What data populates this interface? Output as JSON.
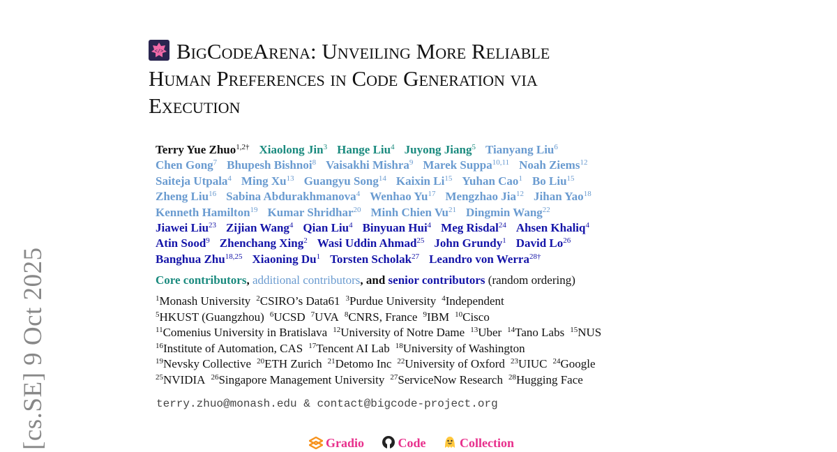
{
  "arxiv_stamp": "[cs.SE]  9 Oct 2025",
  "title": {
    "lines": [
      "BigCodeArena: Unveiling More Reliable",
      "Human Preferences in Code Generation via",
      "Execution"
    ],
    "logo_text": "</>"
  },
  "colors": {
    "core": "#1a8a7e",
    "additional": "#6a9bd0",
    "senior": "#1414a8",
    "link": "#e8308c"
  },
  "authors": [
    [
      {
        "name": "Terry Yue Zhuo",
        "sup": "1,2†",
        "type": "lead"
      },
      {
        "name": "Xiaolong Jin",
        "sup": "3",
        "type": "core"
      },
      {
        "name": "Hange Liu",
        "sup": "4",
        "type": "core"
      },
      {
        "name": "Juyong Jiang",
        "sup": "5",
        "type": "core"
      },
      {
        "name": "Tianyang Liu",
        "sup": "6",
        "type": "additional"
      }
    ],
    [
      {
        "name": "Chen Gong",
        "sup": "7",
        "type": "additional"
      },
      {
        "name": "Bhupesh Bishnoi",
        "sup": "8",
        "type": "additional"
      },
      {
        "name": "Vaisakhi Mishra",
        "sup": "9",
        "type": "additional"
      },
      {
        "name": "Marek Suppa",
        "sup": "10,11",
        "type": "additional"
      },
      {
        "name": "Noah Ziems",
        "sup": "12",
        "type": "additional"
      }
    ],
    [
      {
        "name": "Saiteja Utpala",
        "sup": "4",
        "type": "additional"
      },
      {
        "name": "Ming Xu",
        "sup": "13",
        "type": "additional"
      },
      {
        "name": "Guangyu Song",
        "sup": "14",
        "type": "additional"
      },
      {
        "name": "Kaixin Li",
        "sup": "15",
        "type": "additional"
      },
      {
        "name": "Yuhan Cao",
        "sup": "1",
        "type": "additional"
      },
      {
        "name": "Bo Liu",
        "sup": "15",
        "type": "additional"
      }
    ],
    [
      {
        "name": "Zheng Liu",
        "sup": "16",
        "type": "additional"
      },
      {
        "name": "Sabina Abdurakhmanova",
        "sup": "4",
        "type": "additional"
      },
      {
        "name": "Wenhao Yu",
        "sup": "17",
        "type": "additional"
      },
      {
        "name": "Mengzhao Jia",
        "sup": "12",
        "type": "additional"
      },
      {
        "name": "Jihan Yao",
        "sup": "18",
        "type": "additional"
      }
    ],
    [
      {
        "name": "Kenneth Hamilton",
        "sup": "19",
        "type": "additional"
      },
      {
        "name": "Kumar Shridhar",
        "sup": "20",
        "type": "additional"
      },
      {
        "name": "Minh Chien Vu",
        "sup": "21",
        "type": "additional"
      },
      {
        "name": "Dingmin Wang",
        "sup": "22",
        "type": "additional"
      }
    ],
    [
      {
        "name": "Jiawei Liu",
        "sup": "23",
        "type": "senior"
      },
      {
        "name": "Zijian Wang",
        "sup": "4",
        "type": "senior"
      },
      {
        "name": "Qian Liu",
        "sup": "4",
        "type": "senior"
      },
      {
        "name": "Binyuan Hui",
        "sup": "4",
        "type": "senior"
      },
      {
        "name": "Meg Risdal",
        "sup": "24",
        "type": "senior"
      },
      {
        "name": "Ahsen Khaliq",
        "sup": "4",
        "type": "senior"
      }
    ],
    [
      {
        "name": "Atin Sood",
        "sup": "9",
        "type": "senior"
      },
      {
        "name": "Zhenchang Xing",
        "sup": "2",
        "type": "senior"
      },
      {
        "name": "Wasi Uddin Ahmad",
        "sup": "25",
        "type": "senior"
      },
      {
        "name": "John Grundy",
        "sup": "1",
        "type": "senior"
      },
      {
        "name": "David Lo",
        "sup": "26",
        "type": "senior"
      }
    ],
    [
      {
        "name": "Banghua Zhu",
        "sup": "18,25",
        "type": "senior"
      },
      {
        "name": "Xiaoning Du",
        "sup": "1",
        "type": "senior"
      },
      {
        "name": "Torsten Scholak",
        "sup": "27",
        "type": "senior"
      },
      {
        "name": "Leandro von Werra",
        "sup": "28†",
        "type": "senior"
      }
    ]
  ],
  "contrib_legend": {
    "core": "Core contributors",
    "sep1": ", ",
    "additional": "additional contributors",
    "sep2": ", and ",
    "senior": "senior contributors",
    "note": " (random ordering)"
  },
  "affiliations": [
    [
      {
        "sup": "1",
        "name": "Monash University"
      },
      {
        "sup": "2",
        "name": "CSIRO’s Data61"
      },
      {
        "sup": "3",
        "name": "Purdue University"
      },
      {
        "sup": "4",
        "name": "Independent"
      }
    ],
    [
      {
        "sup": "5",
        "name": "HKUST (Guangzhou)"
      },
      {
        "sup": "6",
        "name": "UCSD"
      },
      {
        "sup": "7",
        "name": "UVA"
      },
      {
        "sup": "8",
        "name": "CNRS, France"
      },
      {
        "sup": "9",
        "name": "IBM"
      },
      {
        "sup": "10",
        "name": "Cisco"
      }
    ],
    [
      {
        "sup": "11",
        "name": "Comenius University in Bratislava"
      },
      {
        "sup": "12",
        "name": "University of Notre Dame"
      },
      {
        "sup": "13",
        "name": "Uber"
      },
      {
        "sup": "14",
        "name": "Tano Labs"
      },
      {
        "sup": "15",
        "name": "NUS"
      }
    ],
    [
      {
        "sup": "16",
        "name": "Institute of Automation, CAS"
      },
      {
        "sup": "17",
        "name": "Tencent AI Lab"
      },
      {
        "sup": "18",
        "name": "University of Washington"
      }
    ],
    [
      {
        "sup": "19",
        "name": "Nevsky Collective"
      },
      {
        "sup": "20",
        "name": "ETH Zurich"
      },
      {
        "sup": "21",
        "name": "Detomo Inc"
      },
      {
        "sup": "22",
        "name": "University of Oxford"
      },
      {
        "sup": "23",
        "name": "UIUC"
      },
      {
        "sup": "24",
        "name": "Google"
      }
    ],
    [
      {
        "sup": "25",
        "name": "NVIDIA"
      },
      {
        "sup": "26",
        "name": "Singapore Management University"
      },
      {
        "sup": "27",
        "name": "ServiceNow Research"
      },
      {
        "sup": "28",
        "name": "Hugging Face"
      }
    ]
  ],
  "email": "terry.zhuo@monash.edu & contact@bigcode-project.org",
  "links": [
    {
      "label": "Gradio",
      "icon": "gradio-icon"
    },
    {
      "label": "Code",
      "icon": "github-icon"
    },
    {
      "label": "Collection",
      "icon": "hugging-face-icon"
    }
  ]
}
